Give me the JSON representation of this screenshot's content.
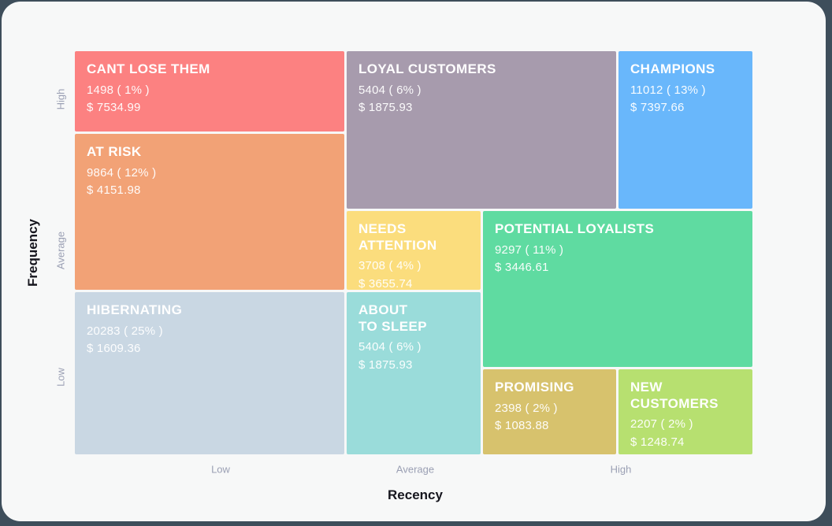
{
  "colors": {
    "page_background": "#3E4E5B",
    "card_background": "#F7F8F8",
    "tick_label": "#9BA0B4",
    "axis_title": "#16161E"
  },
  "axes": {
    "y": {
      "title": "Frequency",
      "ticks": [
        "High",
        "Average",
        "Low"
      ]
    },
    "x": {
      "title": "Recency",
      "ticks": [
        "Low",
        "Average",
        "High"
      ]
    }
  },
  "chart_data": {
    "type": "heatmap",
    "subtype": "rfm-segment-grid",
    "title": "",
    "xlabel": "Recency",
    "ylabel": "Frequency",
    "x_ticks": [
      "Low",
      "Average",
      "High"
    ],
    "y_ticks": [
      "High",
      "Average",
      "Low"
    ],
    "legend": "none",
    "grid": "off",
    "segments": [
      {
        "name": "CANT LOSE THEM",
        "count": 1498,
        "percent": "1%",
        "monetary": 7534.99,
        "count_line": "1498 ( 1% )",
        "value_line": "$ 7534.99",
        "color": "#FC8181",
        "recency": "Low",
        "frequency": "High"
      },
      {
        "name": "LOYAL CUSTOMERS",
        "count": 5404,
        "percent": "6%",
        "monetary": 1875.93,
        "count_line": "5404 ( 6% )",
        "value_line": "$ 1875.93",
        "color": "#A79BAD",
        "recency": "Average",
        "frequency": "High"
      },
      {
        "name": "CHAMPIONS",
        "count": 11012,
        "percent": "13%",
        "monetary": 7397.66,
        "count_line": "11012 ( 13% )",
        "value_line": "$ 7397.66",
        "color": "#69B7FB",
        "recency": "High",
        "frequency": "High"
      },
      {
        "name": "AT RISK",
        "count": 9864,
        "percent": "12%",
        "monetary": 4151.98,
        "count_line": "9864 ( 12% )",
        "value_line": "$ 4151.98",
        "color": "#F2A276",
        "recency": "Low",
        "frequency": "Average"
      },
      {
        "name": "NEEDS\nATTENTION",
        "count": 3708,
        "percent": "4%",
        "monetary": 3655.74,
        "count_line": "3708 ( 4% )",
        "value_line": "$ 3655.74",
        "color": "#FBDD7D",
        "recency": "Average",
        "frequency": "Average"
      },
      {
        "name": "POTENTIAL LOYALISTS",
        "count": 9297,
        "percent": "11%",
        "monetary": 3446.61,
        "count_line": "9297 ( 11% )",
        "value_line": "$ 3446.61",
        "color": "#5FDBA1",
        "recency": "High",
        "frequency": "Average"
      },
      {
        "name": "HIBERNATING",
        "count": 20283,
        "percent": "25%",
        "monetary": 1609.36,
        "count_line": "20283 ( 25% )",
        "value_line": "$ 1609.36",
        "color": "#C9D7E3",
        "recency": "Low",
        "frequency": "Low"
      },
      {
        "name": "ABOUT\nTO SLEEP",
        "count": 5404,
        "percent": "6%",
        "monetary": 1875.93,
        "count_line": "5404 ( 6% )",
        "value_line": "$ 1875.93",
        "color": "#9ADCDA",
        "recency": "Average",
        "frequency": "Low"
      },
      {
        "name": "PROMISING",
        "count": 2398,
        "percent": "2%",
        "monetary": 1083.88,
        "count_line": "2398 ( 2% )",
        "value_line": "$ 1083.88",
        "color": "#D7C26D",
        "recency": "Average",
        "frequency": "Low"
      },
      {
        "name": "NEW\nCUSTOMERS",
        "count": 2207,
        "percent": "2%",
        "monetary": 1248.74,
        "count_line": "2207 ( 2% )",
        "value_line": "$ 1248.74",
        "color": "#B7E070",
        "recency": "High",
        "frequency": "Low"
      }
    ]
  }
}
